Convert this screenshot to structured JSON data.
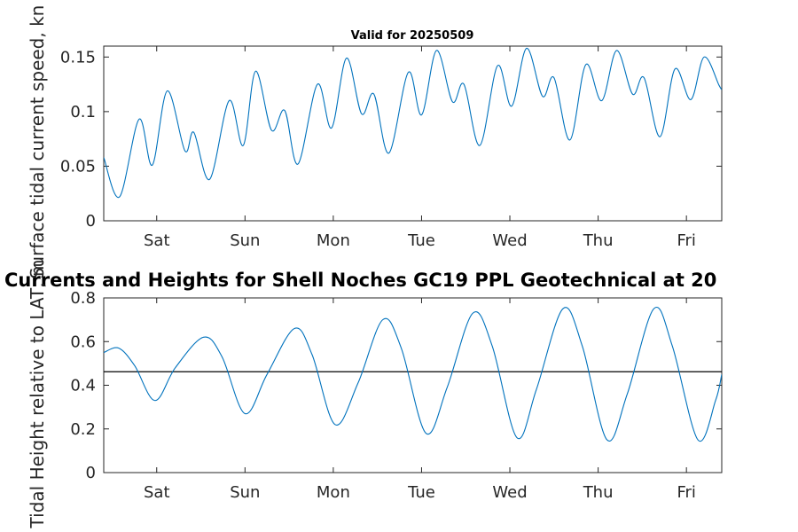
{
  "small_title": "Valid for 20250509",
  "big_title": "Currents and Heights for Shell Noches   GC19 PPL  Geotechnical at 20",
  "colors": {
    "series": "#0072bd",
    "reference": "#000000",
    "axes": "#262626"
  },
  "chart_data": [
    {
      "type": "line",
      "ylabel": "Surface tidal current speed, kn",
      "ylim": [
        0,
        0.16
      ],
      "yticks": [
        0,
        0.05,
        0.1,
        0.15
      ],
      "ytick_labels": [
        "0",
        "0.05",
        "0.1",
        "0.15"
      ],
      "xlim": [
        0,
        7
      ],
      "xticks": [
        0.6,
        1.6,
        2.6,
        3.6,
        4.6,
        5.6,
        6.6
      ],
      "xtick_labels": [
        "Sat",
        "Sun",
        "Mon",
        "Tue",
        "Wed",
        "Thu",
        "Fri"
      ],
      "x": [
        0,
        0.18,
        0.4,
        0.55,
        0.72,
        0.92,
        1.02,
        1.2,
        1.42,
        1.58,
        1.72,
        1.9,
        2.05,
        2.2,
        2.42,
        2.58,
        2.75,
        2.92,
        3.06,
        3.23,
        3.45,
        3.6,
        3.77,
        3.95,
        4.08,
        4.26,
        4.46,
        4.62,
        4.79,
        4.97,
        5.1,
        5.28,
        5.46,
        5.64,
        5.81,
        5.99,
        6.12,
        6.3,
        6.47,
        6.65,
        6.8,
        6.97,
        7.0
      ],
      "series": [
        {
          "values": [
            0.058,
            0.022,
            0.093,
            0.051,
            0.119,
            0.064,
            0.081,
            0.038,
            0.11,
            0.069,
            0.137,
            0.083,
            0.101,
            0.052,
            0.125,
            0.085,
            0.149,
            0.098,
            0.116,
            0.062,
            0.136,
            0.097,
            0.156,
            0.109,
            0.125,
            0.069,
            0.142,
            0.105,
            0.158,
            0.114,
            0.131,
            0.074,
            0.143,
            0.11,
            0.156,
            0.116,
            0.131,
            0.077,
            0.139,
            0.111,
            0.15,
            0.124,
            0.12
          ]
        }
      ]
    },
    {
      "type": "line",
      "ylabel": "Tidal Height relative to LAT, m",
      "ylim": [
        0,
        0.8
      ],
      "yticks": [
        0,
        0.2,
        0.4,
        0.6,
        0.8
      ],
      "ytick_labels": [
        "0",
        "0.2",
        "0.4",
        "0.6",
        "0.8"
      ],
      "xlim": [
        0,
        7
      ],
      "xticks": [
        0.6,
        1.6,
        2.6,
        3.6,
        4.6,
        5.6,
        6.6
      ],
      "xtick_labels": [
        "Sat",
        "Sun",
        "Mon",
        "Tue",
        "Wed",
        "Thu",
        "Fri"
      ],
      "reference_line": 0.462,
      "x": [
        0,
        0.17,
        0.35,
        0.58,
        0.81,
        1.13,
        1.34,
        1.6,
        1.85,
        2.16,
        2.36,
        2.62,
        2.88,
        3.16,
        3.37,
        3.65,
        3.89,
        4.18,
        4.4,
        4.68,
        4.9,
        5.2,
        5.42,
        5.7,
        5.93,
        6.23,
        6.44,
        6.73,
        6.93,
        7.0
      ],
      "series": [
        {
          "values": [
            0.55,
            0.57,
            0.49,
            0.33,
            0.48,
            0.62,
            0.53,
            0.27,
            0.45,
            0.66,
            0.54,
            0.22,
            0.41,
            0.7,
            0.57,
            0.18,
            0.39,
            0.73,
            0.58,
            0.16,
            0.38,
            0.75,
            0.58,
            0.15,
            0.36,
            0.75,
            0.58,
            0.15,
            0.33,
            0.45
          ]
        }
      ]
    }
  ]
}
